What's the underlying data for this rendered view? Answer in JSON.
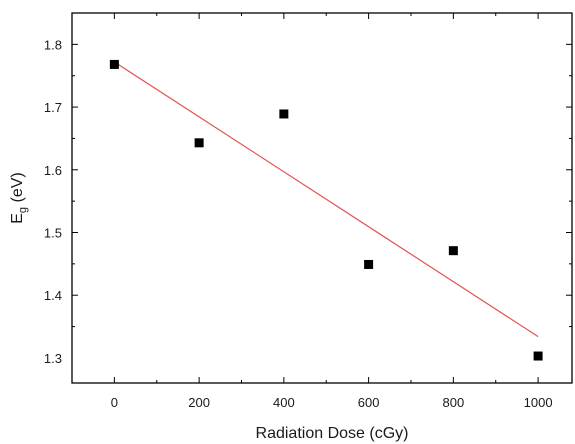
{
  "chart_data": {
    "type": "scatter",
    "xlabel": "Radiation Dose (cGy)",
    "ylabel_main": "E",
    "ylabel_sub": "g",
    "ylabel_unit": "(eV)",
    "xlim": [
      -100,
      1080
    ],
    "ylim": [
      1.26,
      1.85
    ],
    "xticks": [
      0,
      200,
      400,
      600,
      800,
      1000
    ],
    "yticks": [
      1.3,
      1.4,
      1.5,
      1.6,
      1.7,
      1.8
    ],
    "ytick_labels": [
      "1.3",
      "1.4",
      "1.5",
      "1.6",
      "1.7",
      "1.8"
    ],
    "series": [
      {
        "x": [
          0,
          200,
          400,
          600,
          800,
          1000
        ],
        "y": [
          1.768,
          1.643,
          1.689,
          1.449,
          1.471,
          1.303
        ],
        "color": "#000000",
        "marker": "square"
      }
    ],
    "fit_line": {
      "x": [
        0,
        1000
      ],
      "y": [
        1.772,
        1.334
      ],
      "color": "#e05555"
    },
    "grid": false
  }
}
